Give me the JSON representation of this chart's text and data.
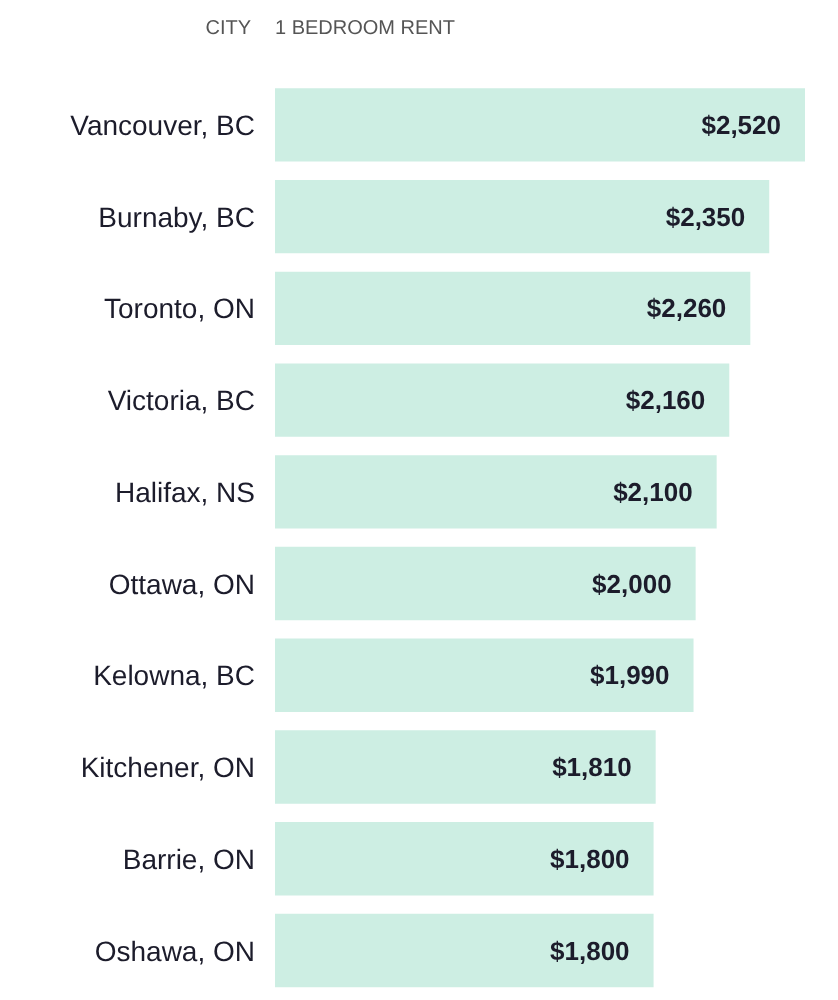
{
  "chart_data": {
    "type": "bar",
    "orientation": "horizontal",
    "ylabel": "CITY",
    "xlabel": "1 BEDROOM RENT",
    "categories": [
      "Vancouver, BC",
      "Burnaby, BC",
      "Toronto, ON",
      "Victoria, BC",
      "Halifax, NS",
      "Ottawa, ON",
      "Kelowna, BC",
      "Kitchener, ON",
      "Barrie, ON",
      "Oshawa, ON"
    ],
    "values": [
      2520,
      2350,
      2260,
      2160,
      2100,
      2000,
      1990,
      1810,
      1800,
      1800
    ],
    "value_labels": [
      "$2,520",
      "$2,350",
      "$2,260",
      "$2,160",
      "$2,100",
      "$2,000",
      "$1,990",
      "$1,810",
      "$1,800",
      "$1,800"
    ],
    "color": "#cdeee3",
    "grid": false
  }
}
